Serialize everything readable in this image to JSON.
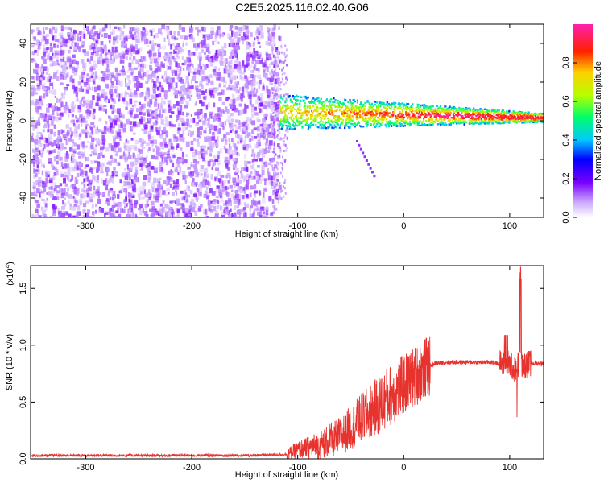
{
  "title": "C2E5.2025.116.02.40.G06",
  "colors": {
    "background": "#ffffff",
    "snr_line": "#e8322e",
    "scatter_noise": "#6a0ff0",
    "ridge_core": "#e53a1a",
    "frame": "#000000"
  },
  "chart_data": [
    {
      "type": "heatmap",
      "xlabel": "Height of straight line (km)",
      "ylabel": "Frequency (Hz)",
      "xlim": [
        -352,
        132
      ],
      "ylim": [
        -50,
        50
      ],
      "x_ticks": [
        -300,
        -200,
        -100,
        0,
        100
      ],
      "y_ticks": [
        -40,
        -20,
        0,
        20,
        40
      ],
      "colorbar": {
        "label": "Normalized spectral amplitude",
        "range": [
          0,
          1
        ],
        "ticks": [
          "0.0",
          "0.2",
          "0.4",
          "0.6",
          "0.8"
        ],
        "tick_values": [
          0,
          0.2,
          0.4,
          0.6,
          0.8
        ],
        "colormap": "rainbow (white→purple→blue→cyan→green→yellow→red→magenta)"
      },
      "regions": [
        {
          "name": "noise",
          "x_range": [
            -352,
            -118
          ],
          "freq_range": [
            -50,
            50
          ],
          "amplitude": 0.12
        },
        {
          "name": "ridge",
          "x_range": [
            -118,
            132
          ],
          "freq_center_start": 5,
          "freq_center_end": 2,
          "amplitude_range": [
            0.3,
            0.95
          ]
        }
      ]
    },
    {
      "type": "line",
      "xlabel": "Height of straight line (km)",
      "ylabel": "SNR (10 * v/v)",
      "y_multiplier": "(x10",
      "y_multiplier_exp": "4",
      "y_multiplier_close": ")",
      "xlim": [
        -352,
        132
      ],
      "ylim": [
        0,
        1.7
      ],
      "x_ticks": [
        -300,
        -200,
        -100,
        0,
        100
      ],
      "y_ticks": [
        "0.0",
        "0.5",
        "1.0",
        "1.5"
      ],
      "y_tick_values": [
        0,
        0.5,
        1.0,
        1.5
      ],
      "series": [
        {
          "values_description": "noisy SNR trace",
          "x": [
            -352,
            -250,
            -150,
            -110,
            -100,
            -80,
            -60,
            -40,
            -20,
            -10,
            0,
            10,
            20,
            30,
            40,
            60,
            80,
            95,
            100,
            105,
            108,
            110,
            115,
            120,
            132
          ],
          "y": [
            0.03,
            0.03,
            0.03,
            0.04,
            0.08,
            0.12,
            0.2,
            0.35,
            0.5,
            0.58,
            0.65,
            0.72,
            0.8,
            0.84,
            0.85,
            0.85,
            0.85,
            0.84,
            0.84,
            0.78,
            0.84,
            0.83,
            0.83,
            0.84,
            0.84
          ]
        }
      ]
    }
  ]
}
